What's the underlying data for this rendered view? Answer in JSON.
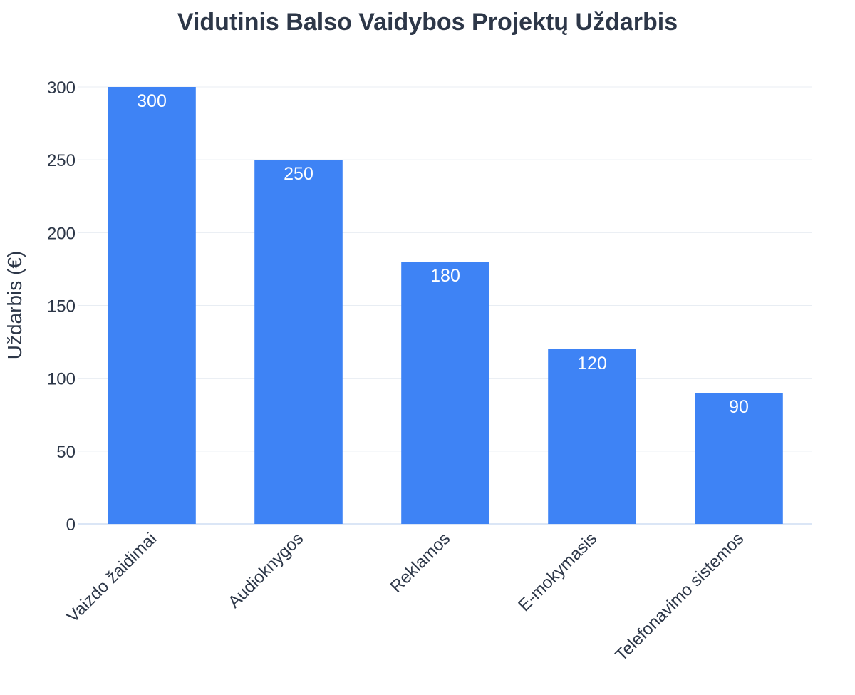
{
  "chart_data": {
    "type": "bar",
    "title": "Vidutinis Balso Vaidybos Projektų Uždarbis",
    "xlabel": "",
    "ylabel": "Uždarbis (€)",
    "categories": [
      "Vaizdo žaidimai",
      "Audioknygos",
      "Reklamos",
      "E-mokymasis",
      "Telefonavimo sistemos"
    ],
    "values": [
      300,
      250,
      180,
      120,
      90
    ],
    "ylim": [
      0,
      300
    ],
    "yticks": [
      0,
      50,
      100,
      150,
      200,
      250,
      300
    ],
    "grid": true,
    "legend": "none",
    "bar_color": "#3e83f5",
    "text_color": "#2d3748"
  }
}
